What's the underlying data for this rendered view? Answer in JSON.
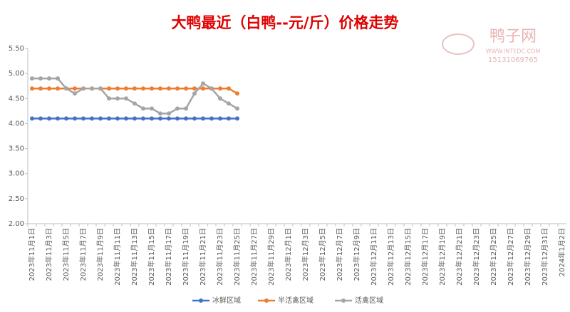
{
  "chart_data": {
    "type": "line",
    "title": "大鸭最近（白鸭--元/斤）价格走势",
    "watermark": {
      "brand": "鸭子网",
      "site": "WWW.INTEDC.COM",
      "phone": "15131069765"
    },
    "categories": [
      "2023年11月1日",
      null,
      "2023年11月3日",
      null,
      "2023年11月5日",
      null,
      "2023年11月7日",
      null,
      "2023年11月9日",
      null,
      "2023年11月11日",
      null,
      "2023年11月13日",
      null,
      "2023年11月15日",
      null,
      "2023年11月17日",
      null,
      "2023年11月19日",
      null,
      "2023年11月21日",
      null,
      "2023年11月23日",
      null,
      "2023年11月25日",
      null,
      "2023年11月27日",
      null,
      "2023年11月29日",
      null,
      "2023年12月1日",
      null,
      "2023年12月3日",
      null,
      "2023年12月5日",
      null,
      "2023年12月7日",
      null,
      "2023年12月9日",
      null,
      "2023年12月11日",
      null,
      "2023年12月13日",
      null,
      "2023年12月15日",
      null,
      "2023年12月17日",
      null,
      "2023年12月19日",
      null,
      "2023年12月21日",
      null,
      "2023年12月23日",
      null,
      "2023年12月25日",
      null,
      "2023年12月27日",
      null,
      "2023年12月29日",
      null,
      "2023年12月31日",
      null,
      "2024年1月2日"
    ],
    "series": [
      {
        "name": "冰鲜区域",
        "color": "#4472c4",
        "values": [
          4.1,
          4.1,
          4.1,
          4.1,
          4.1,
          4.1,
          4.1,
          4.1,
          4.1,
          4.1,
          4.1,
          4.1,
          4.1,
          4.1,
          4.1,
          4.1,
          4.1,
          4.1,
          4.1,
          4.1,
          4.1,
          4.1,
          4.1,
          4.1,
          4.1,
          null,
          null,
          null,
          null,
          null,
          null,
          null,
          null,
          null,
          null,
          null,
          null,
          null,
          null,
          null,
          null,
          null,
          null,
          null,
          null,
          null,
          null,
          null,
          null,
          null,
          null,
          null,
          null,
          null,
          null,
          null,
          null,
          null,
          null,
          null,
          null,
          null,
          null
        ]
      },
      {
        "name": "半活禽区域",
        "color": "#ed7d31",
        "values": [
          4.7,
          4.7,
          4.7,
          4.7,
          4.7,
          4.7,
          4.7,
          4.7,
          4.7,
          4.7,
          4.7,
          4.7,
          4.7,
          4.7,
          4.7,
          4.7,
          4.7,
          4.7,
          4.7,
          4.7,
          4.7,
          4.7,
          4.7,
          4.7,
          4.6,
          null,
          null,
          null,
          null,
          null,
          null,
          null,
          null,
          null,
          null,
          null,
          null,
          null,
          null,
          null,
          null,
          null,
          null,
          null,
          null,
          null,
          null,
          null,
          null,
          null,
          null,
          null,
          null,
          null,
          null,
          null,
          null,
          null,
          null,
          null,
          null,
          null,
          null
        ]
      },
      {
        "name": "活禽区域",
        "color": "#a5a5a5",
        "values": [
          4.9,
          4.9,
          4.9,
          4.9,
          4.7,
          4.6,
          4.7,
          4.7,
          4.7,
          4.5,
          4.5,
          4.5,
          4.4,
          4.3,
          4.3,
          4.2,
          4.2,
          4.3,
          4.3,
          4.6,
          4.8,
          4.7,
          4.5,
          4.4,
          4.3,
          null,
          null,
          null,
          null,
          null,
          null,
          null,
          null,
          null,
          null,
          null,
          null,
          null,
          null,
          null,
          null,
          null,
          null,
          null,
          null,
          null,
          null,
          null,
          null,
          null,
          null,
          null,
          null,
          null,
          null,
          null,
          null,
          null,
          null,
          null,
          null,
          null,
          null
        ]
      }
    ],
    "ylim": [
      2,
      5.5
    ],
    "yticks": [
      {
        "value": 2,
        "label": "2.00"
      },
      {
        "value": 2.5,
        "label": "2.50"
      },
      {
        "value": 3,
        "label": "3.00"
      },
      {
        "value": 3.5,
        "label": "3.50"
      },
      {
        "value": 4,
        "label": "4.00"
      },
      {
        "value": 4.5,
        "label": "4.50"
      },
      {
        "value": 5,
        "label": "5.00"
      },
      {
        "value": 5.5,
        "label": "5.50"
      }
    ],
    "grid": false,
    "legend": "bottom"
  }
}
